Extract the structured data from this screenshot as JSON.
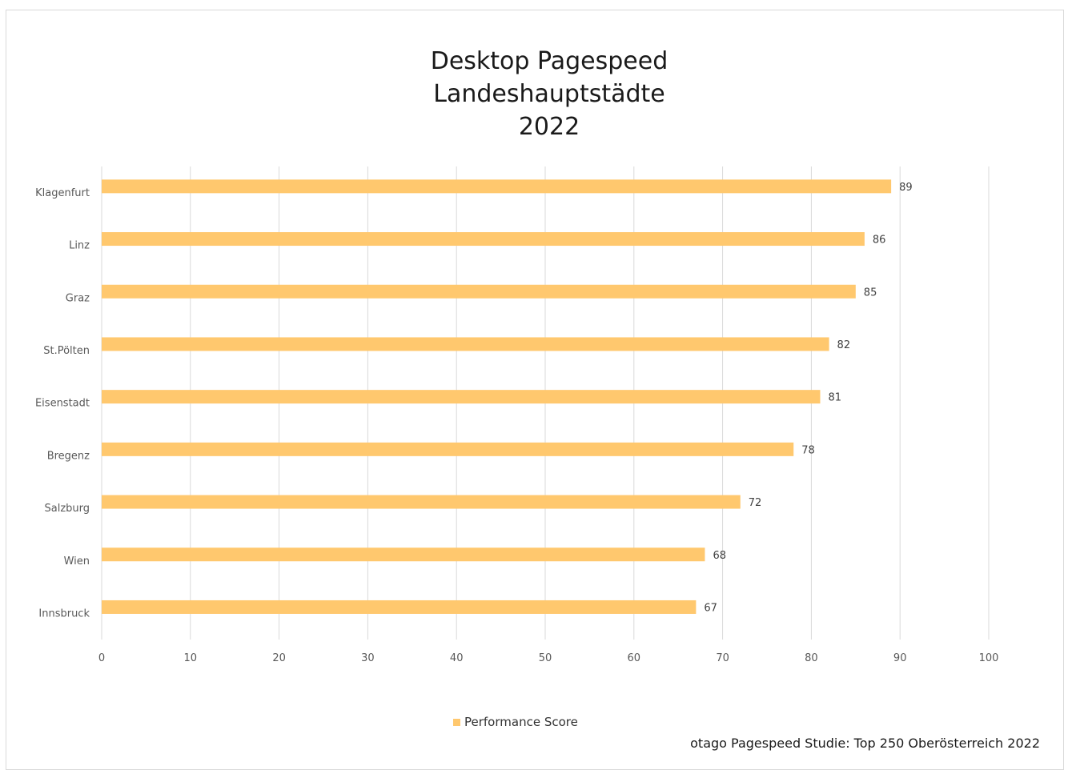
{
  "chart_data": {
    "type": "bar",
    "orientation": "horizontal",
    "title": [
      "Desktop Pagespeed",
      "Landeshauptstädte",
      "2022"
    ],
    "categories": [
      "Klagenfurt",
      "Linz",
      "Graz",
      "St.Pölten",
      "Eisenstadt",
      "Bregenz",
      "Salzburg",
      "Wien",
      "Innsbruck"
    ],
    "series": [
      {
        "name": "Performance Score",
        "values": [
          89,
          86,
          85,
          82,
          81,
          78,
          72,
          68,
          67
        ],
        "color": "#ffc86e"
      }
    ],
    "xlim": [
      0,
      100
    ],
    "xticks": [
      0,
      10,
      20,
      30,
      40,
      50,
      60,
      70,
      80,
      90,
      100
    ],
    "grid": true,
    "data_labels": true,
    "legend_position": "bottom",
    "source": "otago Pagespeed Studie: Top 250 Oberösterreich 2022"
  }
}
